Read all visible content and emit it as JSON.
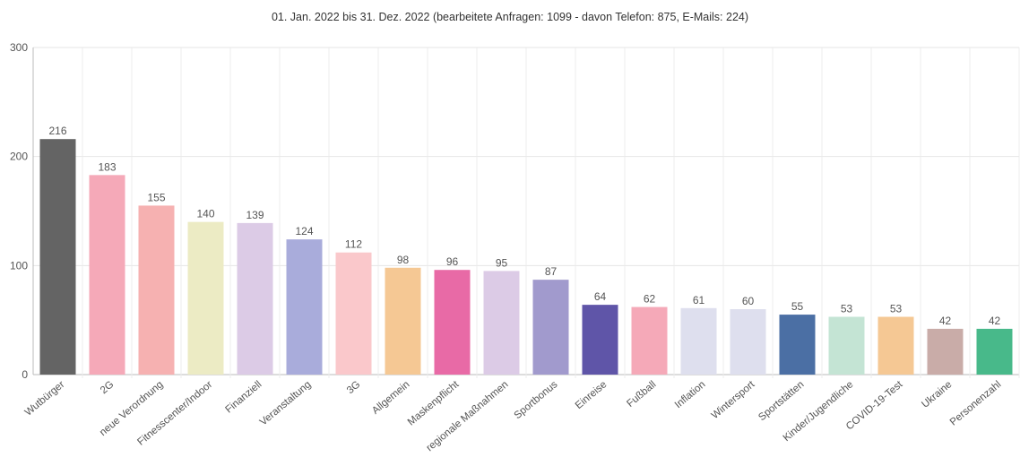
{
  "chart_data": {
    "type": "bar",
    "title": "01. Jan. 2022 bis 31. Dez. 2022 (bearbeitete Anfragen: 1099 - davon Telefon: 875, E-Mails: 224)",
    "xlabel": "",
    "ylabel": "",
    "ylim": [
      0,
      300
    ],
    "yticks": [
      "0",
      "100",
      "200",
      "300"
    ],
    "grid": true,
    "categories": [
      "Wutbürger",
      "2G",
      "neue Verordnung",
      "Fitnesscenter/Indoor",
      "Finanziell",
      "Veranstaltung",
      "3G",
      "Allgemein",
      "Maskenpflicht",
      "regionale Maßnahmen",
      "Sportbonus",
      "Einreise",
      "Fußball",
      "Inflation",
      "Wintersport",
      "Sportstätten",
      "Kinder/Jugendliche",
      "COVID-19-Test",
      "Ukraine",
      "Personenzahl"
    ],
    "values": [
      216,
      183,
      155,
      140,
      139,
      124,
      112,
      98,
      96,
      95,
      87,
      64,
      62,
      61,
      60,
      55,
      53,
      53,
      42,
      42
    ],
    "colors": [
      "#646464",
      "#f5a9b8",
      "#f6b1b1",
      "#ecebc4",
      "#dccbe6",
      "#a9acdb",
      "#fac8cb",
      "#f5c894",
      "#e86aa6",
      "#dccbe6",
      "#a19acd",
      "#5f55a8",
      "#f5a9b8",
      "#dedfee",
      "#dedfee",
      "#4b6fa4",
      "#c4e4d4",
      "#f5c894",
      "#c9aca8",
      "#48b98a"
    ]
  }
}
